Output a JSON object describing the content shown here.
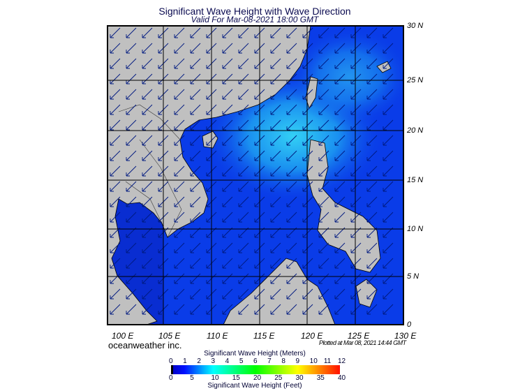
{
  "header": {
    "title": "Significant Wave Height with Wave Direction",
    "subtitle": "Valid For Mar-08-2021 18:00 GMT"
  },
  "map": {
    "lon_labels": [
      "100 E",
      "105 E",
      "110 E",
      "115 E",
      "120 E",
      "125 E",
      "130 E"
    ],
    "lat_labels": [
      "30 N",
      "25 N",
      "20 N",
      "15 N",
      "10 N",
      "5 N",
      "0"
    ],
    "wave_direction": "toward southwest",
    "colors": {
      "land": "#c0c0c0",
      "sea": "#0a3ce8",
      "sea_high": "#19a6f0"
    }
  },
  "footer": {
    "brand": "oceanweather inc.",
    "plotted": "Plotted at Mar 08, 2021 14:44 GMT"
  },
  "colorbar": {
    "meters_title": "Significant Wave Height (Meters)",
    "meters_ticks": [
      "0",
      "1",
      "2",
      "3",
      "4",
      "5",
      "6",
      "7",
      "8",
      "9",
      "10",
      "11",
      "12"
    ],
    "feet_ticks": [
      "0",
      "5",
      "10",
      "15",
      "20",
      "25",
      "30",
      "35",
      "40"
    ],
    "feet_title": "Significant Wave Height (Feet)",
    "colors": [
      "#000000",
      "#0000ff",
      "#0080ff",
      "#00ffff",
      "#00ff80",
      "#00ff00",
      "#80ff00",
      "#ffff00",
      "#ff8000",
      "#ff0000"
    ]
  }
}
